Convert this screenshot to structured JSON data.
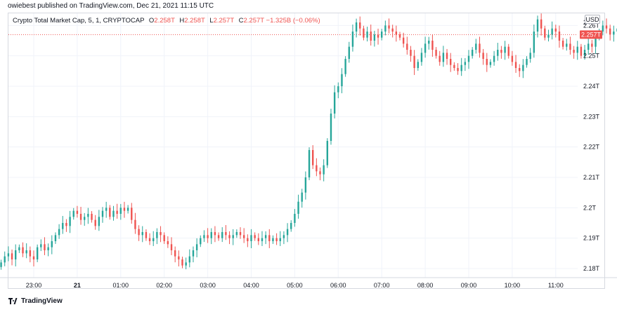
{
  "publish_line": "owiebest published on TradingView.com, Dec 21, 2021 11:15 UTC",
  "legend": {
    "symbol": "Crypto Total Market Cap, 5, 1, CRYPTOCAP",
    "o_label": "O",
    "o_value": "2.258T",
    "h_label": "H",
    "h_value": "2.258T",
    "l_label": "L",
    "l_value": "2.257T",
    "c_label": "C",
    "c_value": "2.257T",
    "change": "−1.325B (−0.06%)"
  },
  "currency": "USD",
  "last_price_label": "2.257T",
  "footer_brand": "TradingView",
  "colors": {
    "up": "#26a69a",
    "down": "#ef5350",
    "grid": "#f0f3fa",
    "text": "#131722"
  },
  "chart_data": {
    "type": "candlestick",
    "y_unit": "T USD",
    "ylim": [
      2.177,
      2.264
    ],
    "y_ticks": [
      "2.26T",
      "2.25T",
      "2.24T",
      "2.23T",
      "2.22T",
      "2.21T",
      "2.2T",
      "2.19T",
      "2.18T"
    ],
    "y_tick_values": [
      2.26,
      2.25,
      2.24,
      2.23,
      2.22,
      2.21,
      2.2,
      2.19,
      2.18
    ],
    "top_tick_partial": "2",
    "x_ticks": [
      "23:00",
      "21",
      "01:00",
      "02:00",
      "03:00",
      "04:00",
      "05:00",
      "06:00",
      "07:00",
      "08:00",
      "09:00",
      "10:00",
      "11:00"
    ],
    "x_tick_hours": [
      23,
      24,
      25,
      26,
      27,
      28,
      29,
      30,
      31,
      32,
      33,
      34,
      35
    ],
    "x_start_hour": 22.25,
    "bar_minutes": 5,
    "last_price": 2.257,
    "closes": [
      2.182,
      2.184,
      2.185,
      2.183,
      2.186,
      2.187,
      2.185,
      2.186,
      2.184,
      2.183,
      2.187,
      2.188,
      2.186,
      2.187,
      2.189,
      2.191,
      2.193,
      2.195,
      2.194,
      2.197,
      2.199,
      2.198,
      2.196,
      2.197,
      2.198,
      2.196,
      2.194,
      2.197,
      2.199,
      2.2,
      2.197,
      2.199,
      2.198,
      2.2,
      2.199,
      2.2,
      2.196,
      2.193,
      2.191,
      2.192,
      2.19,
      2.189,
      2.19,
      2.192,
      2.191,
      2.189,
      2.188,
      2.186,
      2.184,
      2.183,
      2.181,
      2.182,
      2.184,
      2.186,
      2.188,
      2.19,
      2.191,
      2.19,
      2.192,
      2.191,
      2.19,
      2.192,
      2.191,
      2.19,
      2.191,
      2.192,
      2.191,
      2.19,
      2.189,
      2.191,
      2.19,
      2.189,
      2.19,
      2.191,
      2.189,
      2.19,
      2.189,
      2.19,
      2.191,
      2.193,
      2.195,
      2.198,
      2.202,
      2.205,
      2.21,
      2.219,
      2.214,
      2.212,
      2.211,
      2.214,
      2.222,
      2.231,
      2.238,
      2.24,
      2.244,
      2.249,
      2.253,
      2.258,
      2.261,
      2.259,
      2.256,
      2.258,
      2.255,
      2.257,
      2.256,
      2.258,
      2.26,
      2.259,
      2.258,
      2.257,
      2.256,
      2.254,
      2.252,
      2.25,
      2.246,
      2.248,
      2.251,
      2.254,
      2.255,
      2.252,
      2.25,
      2.248,
      2.251,
      2.249,
      2.247,
      2.246,
      2.245,
      2.247,
      2.248,
      2.25,
      2.252,
      2.254,
      2.251,
      2.249,
      2.247,
      2.248,
      2.25,
      2.252,
      2.251,
      2.253,
      2.25,
      2.248,
      2.246,
      2.245,
      2.247,
      2.249,
      2.251,
      2.258,
      2.262,
      2.259,
      2.256,
      2.257,
      2.259,
      2.258,
      2.255,
      2.253,
      2.254,
      2.252,
      2.251,
      2.253,
      2.25,
      2.252,
      2.254,
      2.253,
      2.256,
      2.258,
      2.26,
      2.259,
      2.257,
      2.258,
      2.259,
      2.258,
      2.257,
      2.259,
      2.26,
      2.258,
      2.259,
      2.261,
      2.26,
      2.258,
      2.259,
      2.258,
      2.257,
      2.259,
      2.258,
      2.257
    ]
  }
}
